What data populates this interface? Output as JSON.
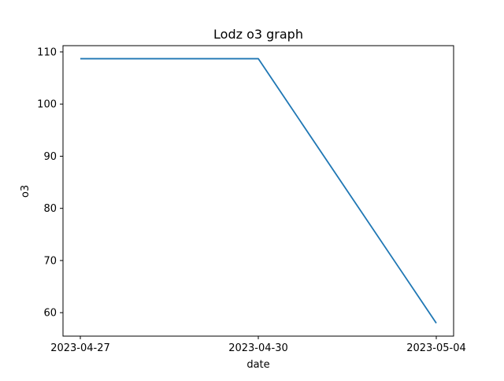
{
  "chart_data": {
    "type": "line",
    "title": "Lodz o3 graph",
    "xlabel": "date",
    "ylabel": "o3",
    "x": [
      "2023-04-27",
      "2023-04-30",
      "2023-05-04"
    ],
    "series": [
      {
        "values": [
          108.7,
          108.7,
          58.0
        ],
        "color": "#1f77b4"
      }
    ],
    "xticks": [
      "2023-04-27",
      "2023-04-30",
      "2023-05-04"
    ],
    "yticks": [
      60,
      70,
      80,
      90,
      100,
      110
    ],
    "ylim": [
      55.5,
      111.2
    ],
    "x_scale": "categorical",
    "grid": false,
    "legend": "none"
  }
}
